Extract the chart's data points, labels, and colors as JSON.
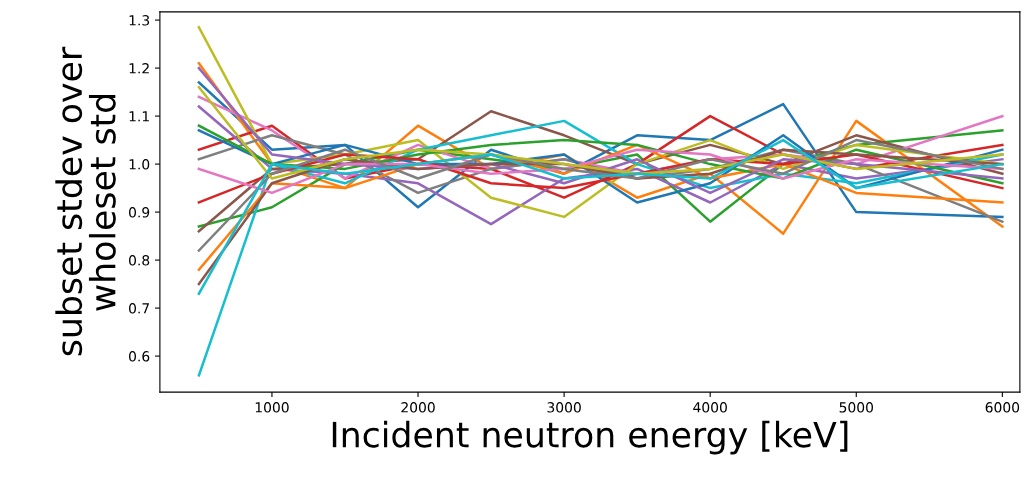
{
  "chart_data": {
    "type": "line",
    "xlabel": "Incident neutron energy [keV]",
    "ylabel": "subset stdev over\nwholeset std",
    "x": [
      500,
      1000,
      1500,
      2000,
      2500,
      3000,
      3500,
      4000,
      4500,
      5000,
      6000
    ],
    "xlim": [
      233,
      6120
    ],
    "ylim": [
      0.525,
      1.317
    ],
    "xticks": [
      1000,
      2000,
      3000,
      4000,
      5000,
      6000
    ],
    "yticks": [
      0.6,
      0.7,
      0.8,
      0.9,
      {
        "value": 1,
        "label": "1.0"
      },
      1.1,
      1.2,
      1.3
    ],
    "marker": "none",
    "line_style": "solid",
    "series": [
      {
        "color": "#1f77b4",
        "values": [
          1.17,
          1.03,
          1.04,
          0.91,
          1.03,
          0.98,
          1.06,
          1.05,
          1.125,
          0.9,
          0.89
        ]
      },
      {
        "color": "#ff7f0e",
        "values": [
          1.21,
          1.0,
          0.95,
          1.08,
          0.99,
          1.02,
          0.93,
          0.98,
          0.855,
          1.09,
          0.87
        ]
      },
      {
        "color": "#2ca02c",
        "values": [
          0.87,
          0.91,
          1.0,
          1.03,
          1.01,
          0.99,
          1.02,
          0.88,
          1.0,
          1.04,
          1.07
        ]
      },
      {
        "color": "#d62728",
        "values": [
          1.03,
          1.08,
          0.97,
          1.0,
          0.99,
          0.93,
          1.0,
          1.1,
          1.02,
          0.99,
          1.04
        ]
      },
      {
        "color": "#9467bd",
        "values": [
          1.12,
          0.99,
          0.98,
          0.96,
          0.875,
          0.97,
          0.99,
          0.92,
          1.0,
          0.97,
          1.01
        ]
      },
      {
        "color": "#8c564b",
        "values": [
          0.86,
          0.99,
          1.0,
          1.01,
          1.11,
          1.06,
          1.0,
          1.04,
          1.0,
          1.06,
          0.98
        ]
      },
      {
        "color": "#e377c2",
        "values": [
          1.14,
          1.07,
          0.97,
          1.04,
          0.99,
          1.01,
          0.98,
          1.01,
          1.02,
          1.0,
          1.1
        ]
      },
      {
        "color": "#7f7f7f",
        "values": [
          1.01,
          1.06,
          1.02,
          0.94,
          0.99,
          1.01,
          0.97,
          0.99,
          1.03,
          1.0,
          0.88
        ]
      },
      {
        "color": "#bcbd22",
        "values": [
          1.285,
          1.0,
          1.02,
          1.05,
          0.93,
          0.89,
          1.0,
          1.05,
          0.99,
          1.04,
          1.0
        ]
      },
      {
        "color": "#17becf",
        "values": [
          0.56,
          1.0,
          0.96,
          1.03,
          1.06,
          1.09,
          1.0,
          0.95,
          0.98,
          0.96,
          1.02
        ]
      },
      {
        "color": "#1f77b4",
        "values": [
          1.07,
          1.0,
          1.04,
          1.0,
          1.0,
          1.02,
          0.92,
          0.96,
          1.06,
          0.95,
          1.03
        ]
      },
      {
        "color": "#ff7f0e",
        "values": [
          0.78,
          0.96,
          0.95,
          1.0,
          1.02,
          0.98,
          1.04,
          0.97,
          1.0,
          0.94,
          0.92
        ]
      },
      {
        "color": "#2ca02c",
        "values": [
          1.08,
          1.0,
          0.99,
          1.02,
          1.04,
          1.05,
          1.04,
          1.0,
          0.97,
          1.03,
          0.96
        ]
      },
      {
        "color": "#d62728",
        "values": [
          0.92,
          0.98,
          1.02,
          1.01,
          0.96,
          0.95,
          0.98,
          1.01,
          1.0,
          1.02,
          0.95
        ]
      },
      {
        "color": "#9467bd",
        "values": [
          1.2,
          1.02,
          1.0,
          0.99,
          1.0,
          0.96,
          1.01,
          0.94,
          1.01,
          1.0,
          0.97
        ]
      },
      {
        "color": "#8c564b",
        "values": [
          0.75,
          0.96,
          1.01,
          0.99,
          1.0,
          1.0,
          0.97,
          0.98,
          1.03,
          1.02,
          1.0
        ]
      },
      {
        "color": "#e377c2",
        "values": [
          0.99,
          0.94,
          1.0,
          1.0,
          0.98,
          0.99,
          1.03,
          1.02,
          0.97,
          1.01,
          0.99
        ]
      },
      {
        "color": "#7f7f7f",
        "values": [
          0.82,
          0.98,
          1.03,
          0.97,
          1.02,
          0.99,
          0.97,
          1.01,
          0.98,
          1.05,
          0.99
        ]
      },
      {
        "color": "#bcbd22",
        "values": [
          1.16,
          0.97,
          1.01,
          1.03,
          1.02,
          1.0,
          0.98,
          0.99,
          1.02,
          0.99,
          1.02
        ]
      },
      {
        "color": "#17becf",
        "values": [
          0.73,
          1.0,
          0.98,
          1.0,
          1.02,
          0.97,
          0.98,
          0.97,
          1.05,
          0.95,
          1.0
        ]
      }
    ]
  }
}
